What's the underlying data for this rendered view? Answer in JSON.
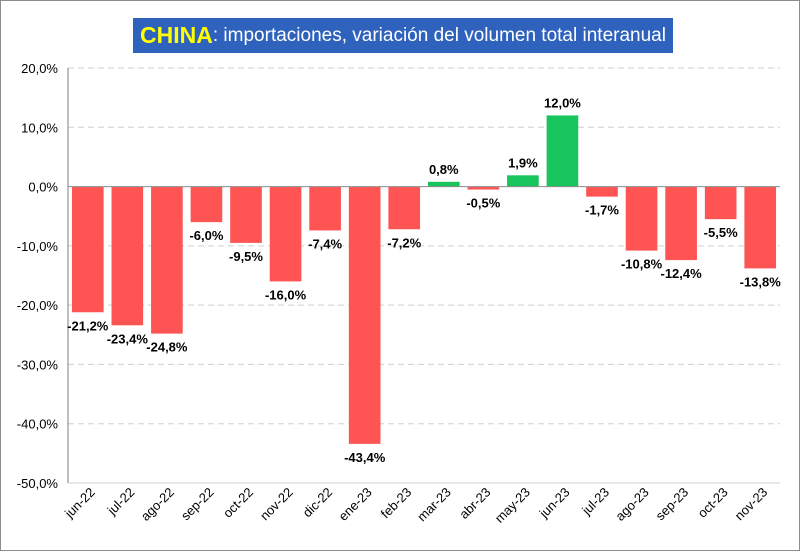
{
  "chart_data": {
    "type": "bar",
    "title_highlight": "CHINA",
    "title_rest": ": importaciones, variación del volumen total interanual",
    "categories": [
      "jun-22",
      "jul-22",
      "ago-22",
      "sep-22",
      "oct-22",
      "nov-22",
      "dic-22",
      "ene-23",
      "feb-23",
      "mar-23",
      "abr-23",
      "may-23",
      "jun-23",
      "jul-23",
      "ago-23",
      "sep-23",
      "oct-23",
      "nov-23"
    ],
    "values": [
      -21.2,
      -23.4,
      -24.8,
      -6.0,
      -9.5,
      -16.0,
      -7.4,
      -43.4,
      -7.2,
      0.8,
      -0.5,
      1.9,
      12.0,
      -1.7,
      -10.8,
      -12.4,
      -5.5,
      -13.8
    ],
    "data_labels": [
      "-21,2%",
      "-23,4%",
      "-24,8%",
      "-6,0%",
      "-9,5%",
      "-16,0%",
      "-7,4%",
      "-43,4%",
      "-7,2%",
      "0,8%",
      "-0,5%",
      "1,9%",
      "12,0%",
      "-1,7%",
      "-10,8%",
      "-12,4%",
      "-5,5%",
      "-13,8%"
    ],
    "yticks": [
      20,
      10,
      0,
      -10,
      -20,
      -30,
      -40,
      -50
    ],
    "ytick_labels": [
      "20,0%",
      "10,0%",
      "0,0%",
      "-10,0%",
      "-20,0%",
      "-30,0%",
      "-40,0%",
      "-50,0%"
    ],
    "ylim": [
      -50,
      20
    ],
    "xlabel": "",
    "ylabel": "",
    "grid": true,
    "colors": {
      "positive": "#18c45c",
      "negative": "#fe5454",
      "title_bg": "#2e62bd",
      "title_highlight": "#ffff00",
      "title_text": "#ffffff",
      "grid": "#d0d0d0"
    }
  }
}
